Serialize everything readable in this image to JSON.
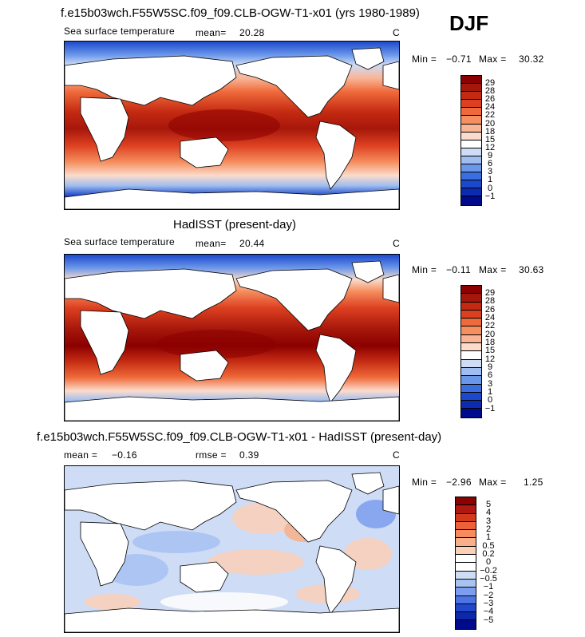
{
  "season": "DJF",
  "panel1": {
    "title": "f.e15b03wch.F55W5SC.f09_f09.CLB-OGW-T1-x01 (yrs 1980-1989)",
    "varname": "Sea surface temperature",
    "mean_label": "mean=",
    "mean_value": "20.28",
    "units": "C",
    "min_label": "Min =",
    "min_value": "−0.71",
    "max_label": "Max =",
    "max_value": "30.32",
    "colorbar_levels": [
      "29",
      "28",
      "26",
      "24",
      "22",
      "20",
      "18",
      "15",
      "12",
      "9",
      "6",
      "3",
      "1",
      "0",
      "−1"
    ]
  },
  "panel2": {
    "title": "HadISST (present-day)",
    "varname": "Sea surface temperature",
    "mean_label": "mean=",
    "mean_value": "20.44",
    "units": "C",
    "min_label": "Min =",
    "min_value": "−0.11",
    "max_label": "Max =",
    "max_value": "30.63",
    "colorbar_levels": [
      "29",
      "28",
      "26",
      "24",
      "22",
      "20",
      "18",
      "15",
      "12",
      "9",
      "6",
      "3",
      "1",
      "0",
      "−1"
    ]
  },
  "panel3": {
    "title": "f.e15b03wch.F55W5SC.f09_f09.CLB-OGW-T1-x01 - HadISST (present-day)",
    "mean_label": "mean =",
    "mean_value": "−0.16",
    "rmse_label": "rmse =",
    "rmse_value": "0.39",
    "units": "C",
    "min_label": "Min =",
    "min_value": "−2.96",
    "max_label": "Max =",
    "max_value": "1.25",
    "colorbar_levels": [
      "5",
      "4",
      "3",
      "2",
      "1",
      "0.5",
      "0.2",
      "0",
      "−0.2",
      "−0.5",
      "−1",
      "−2",
      "−3",
      "−4",
      "−5"
    ]
  },
  "colors": {
    "abs_scale": [
      "#8b0000",
      "#a6170b",
      "#c42a12",
      "#dd4020",
      "#ef6a3a",
      "#f58f60",
      "#f9b496",
      "#fbdccc",
      "#ffffff",
      "#cfdcf5",
      "#9fbdf0",
      "#6b97ea",
      "#3b6fe0",
      "#1c49cc",
      "#0b2bb0",
      "#000a8c"
    ],
    "diff_scale": [
      "#8b0000",
      "#b01812",
      "#d33a1c",
      "#ee6038",
      "#f68b5e",
      "#f9b08a",
      "#fbd0b8",
      "#ffffff",
      "#ffffff",
      "#cfdcf5",
      "#a8c2f2",
      "#7d9eee",
      "#4d74e4",
      "#2147cc",
      "#0b29aa",
      "#000a8c"
    ]
  }
}
